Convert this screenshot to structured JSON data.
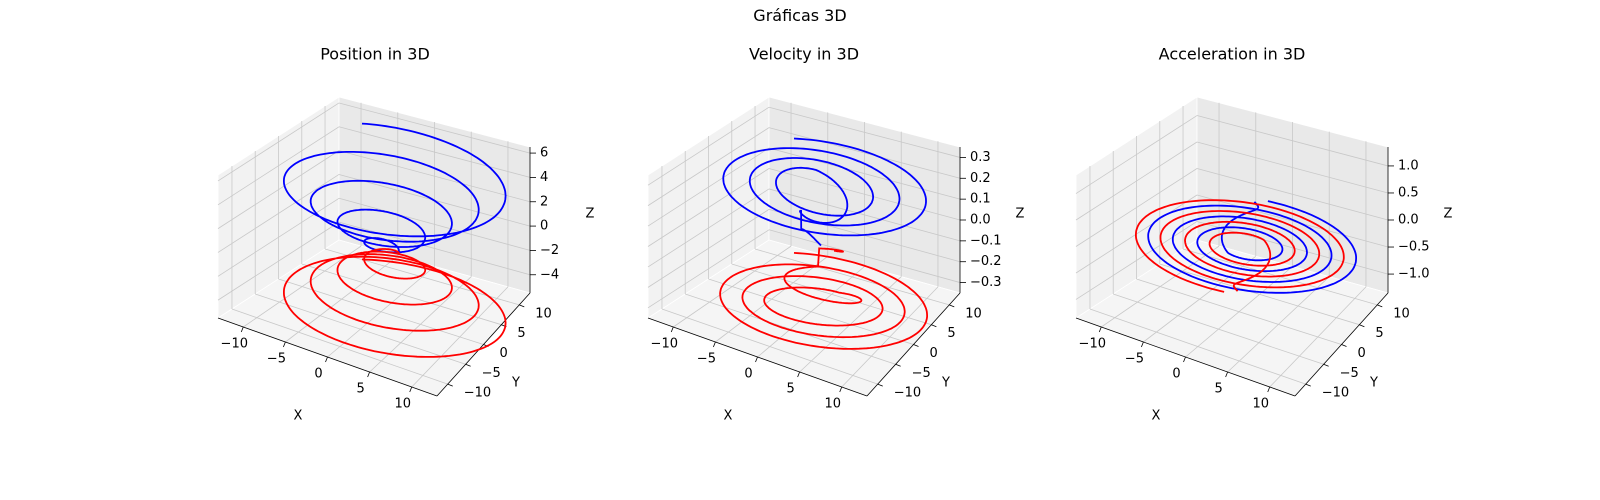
{
  "figure": {
    "suptitle": "Gráficas 3D"
  },
  "chart_data": [
    {
      "type": "line",
      "title": "Position in 3D",
      "xlabel": "X",
      "ylabel": "Y",
      "zlabel": "Z",
      "xlim": [
        -13,
        13
      ],
      "ylim": [
        -13,
        13
      ],
      "zlim": [
        -5.5,
        6.5
      ],
      "xticks": [
        -10,
        -5,
        0,
        5,
        10
      ],
      "xtick_labels": [
        "−10",
        "−5",
        "0",
        "5",
        "10"
      ],
      "yticks": [
        -10,
        -5,
        0,
        5,
        10
      ],
      "ytick_labels": [
        "−10",
        "−5",
        "0",
        "5",
        "10"
      ],
      "zticks": [
        -4,
        -2,
        0,
        2,
        4,
        6
      ],
      "ztick_labels": [
        "−4",
        "−2",
        "0",
        "2",
        "4",
        "6"
      ],
      "grid": true,
      "series": [
        {
          "color": "#0000ff",
          "kind": "spiral",
          "z_range": [
            0,
            6.2
          ],
          "radius_range": [
            1,
            13
          ],
          "turns": 4.3,
          "phase": 0.4
        },
        {
          "color": "#ff0000",
          "kind": "spiral",
          "z_range": [
            0,
            -5.2
          ],
          "radius_range": [
            1,
            13
          ],
          "turns": 4.3,
          "phase": 0.4
        }
      ]
    },
    {
      "type": "line",
      "title": "Velocity in 3D",
      "xlabel": "X",
      "ylabel": "Y",
      "zlabel": "Z",
      "xlim": [
        -13,
        13
      ],
      "ylim": [
        -13,
        13
      ],
      "zlim": [
        -0.35,
        0.35
      ],
      "xticks": [
        -10,
        -5,
        0,
        5,
        10
      ],
      "xtick_labels": [
        "−10",
        "−5",
        "0",
        "5",
        "10"
      ],
      "yticks": [
        -10,
        -5,
        0,
        5,
        10
      ],
      "ytick_labels": [
        "−10",
        "−5",
        "0",
        "5",
        "10"
      ],
      "zticks": [
        -0.3,
        -0.2,
        -0.1,
        0.0,
        0.1,
        0.2,
        0.3
      ],
      "ztick_labels": [
        "−0.3",
        "−0.2",
        "−0.1",
        "0.0",
        "0.1",
        "0.2",
        "0.3"
      ],
      "grid": true,
      "series": [
        {
          "color": "#0000ff",
          "kind": "velocity",
          "z_sign": 1
        },
        {
          "color": "#ff0000",
          "kind": "velocity",
          "z_sign": -1
        }
      ]
    },
    {
      "type": "line",
      "title": "Acceleration in 3D",
      "xlabel": "X",
      "ylabel": "Y",
      "zlabel": "Z",
      "xlim": [
        -13,
        13
      ],
      "ylim": [
        -13,
        13
      ],
      "zlim": [
        -1.35,
        1.35
      ],
      "xticks": [
        -10,
        -5,
        0,
        5,
        10
      ],
      "xtick_labels": [
        "−10",
        "−5",
        "0",
        "5",
        "10"
      ],
      "yticks": [
        -10,
        -5,
        0,
        5,
        10
      ],
      "ytick_labels": [
        "−10",
        "−5",
        "0",
        "5",
        "10"
      ],
      "zticks": [
        -1.0,
        -0.5,
        0.0,
        0.5,
        1.0
      ],
      "ztick_labels": [
        "−1.0",
        "−0.5",
        "0.0",
        "0.5",
        "1.0"
      ],
      "grid": true,
      "series": [
        {
          "color": "#0000ff",
          "kind": "flat_spiral",
          "phase": 0.0
        },
        {
          "color": "#ff0000",
          "kind": "flat_spiral",
          "phase": 3.14159
        }
      ]
    }
  ]
}
